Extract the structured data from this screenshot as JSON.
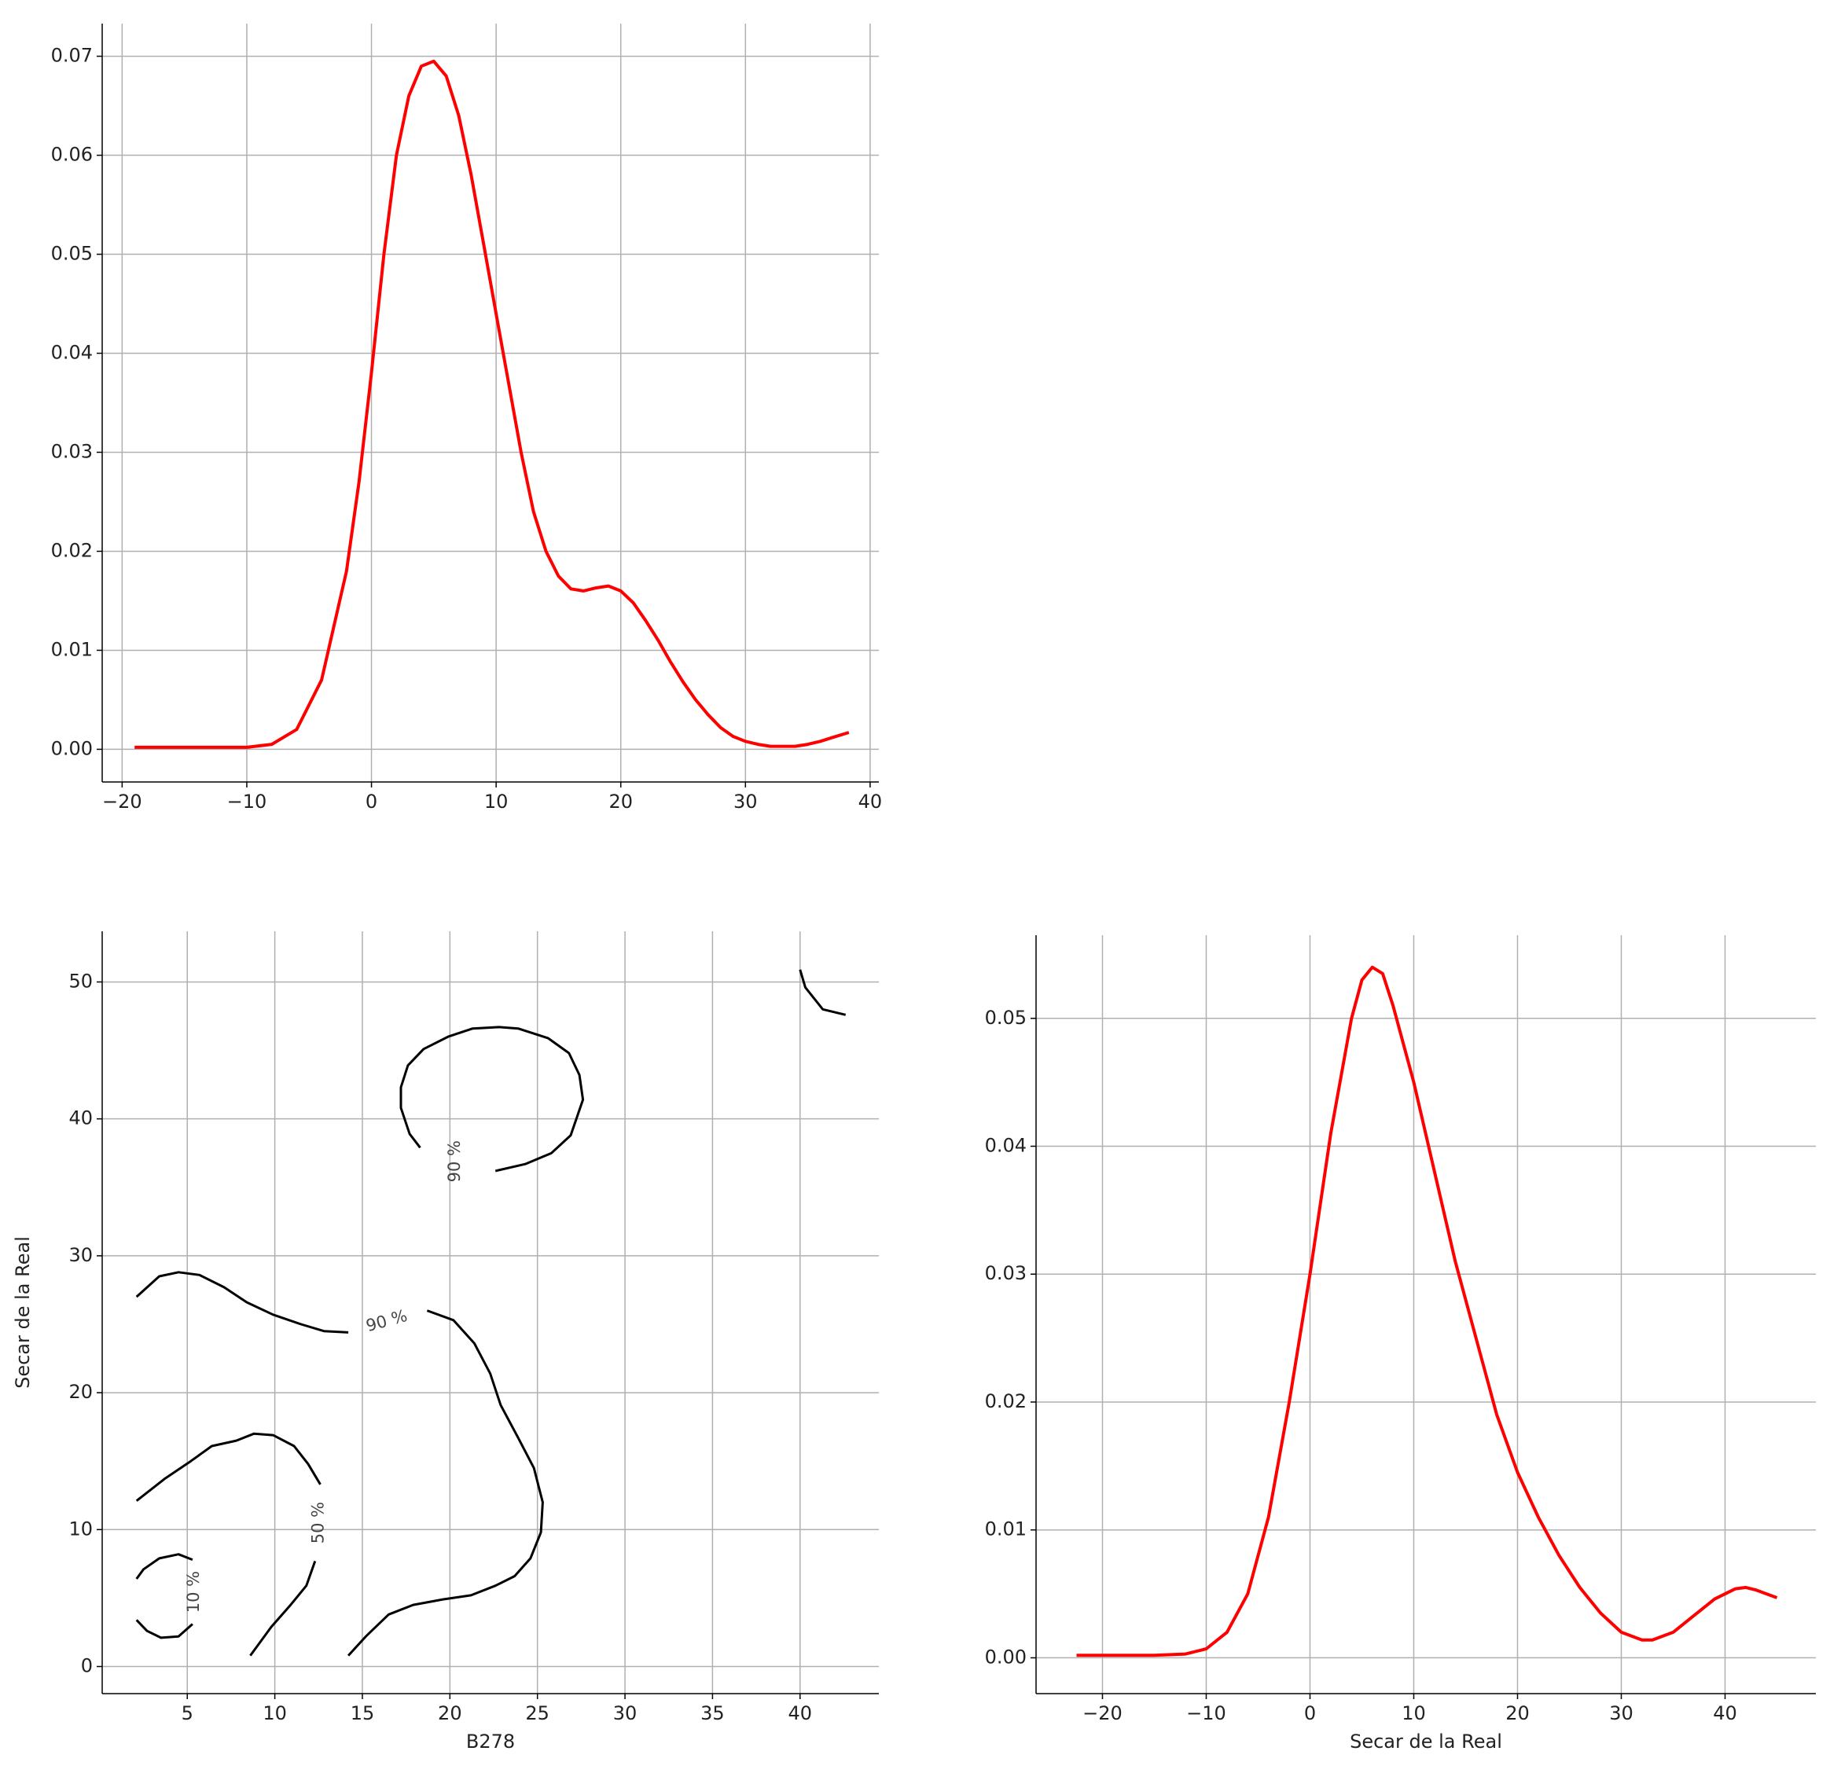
{
  "chart_data": [
    {
      "type": "line",
      "x": [
        -19,
        -15,
        -10,
        -8,
        -6,
        -4,
        -2,
        -1,
        0,
        1,
        2,
        3,
        4,
        5,
        6,
        7,
        8,
        9,
        10,
        11,
        12,
        13,
        14,
        15,
        16,
        17,
        18,
        19,
        20,
        21,
        22,
        23,
        24,
        25,
        26,
        27,
        28,
        29,
        30,
        31,
        32,
        33,
        34,
        35,
        36,
        37,
        38.3
      ],
      "series": [
        {
          "color": "#ff0000",
          "values": [
            0.0002,
            0.0002,
            0.0002,
            0.0005,
            0.002,
            0.007,
            0.018,
            0.027,
            0.038,
            0.05,
            0.06,
            0.066,
            0.069,
            0.0695,
            0.068,
            0.064,
            0.058,
            0.051,
            0.044,
            0.037,
            0.03,
            0.024,
            0.02,
            0.0175,
            0.0162,
            0.016,
            0.0163,
            0.0165,
            0.016,
            0.0148,
            0.013,
            0.011,
            0.0088,
            0.0068,
            0.005,
            0.0035,
            0.0022,
            0.0013,
            0.0008,
            0.0005,
            0.0003,
            0.0003,
            0.0003,
            0.0005,
            0.0008,
            0.0012,
            0.0017
          ]
        }
      ],
      "xlim": [
        -21.6,
        40.7
      ],
      "ylim": [
        -0.0033,
        0.0733
      ],
      "xticks": [
        {
          "value": -20,
          "label": "−20"
        },
        {
          "value": -10,
          "label": "−10"
        },
        0,
        10,
        20,
        30,
        40
      ],
      "yticks": [
        {
          "value": 0,
          "label": "0.00"
        },
        0.01,
        0.02,
        0.03,
        0.04,
        0.05,
        0.06,
        0.07
      ],
      "grid": true
    },
    {
      "type": "contour",
      "xlabel": "B278",
      "ylabel": "Secar de la Real",
      "lines": [
        {
          "color": "#000000",
          "x": [
            40,
            40.3,
            41.3,
            42.6
          ],
          "y": [
            50.9,
            49.6,
            48,
            47.6
          ]
        },
        {
          "color": "#000000",
          "x": [
            22.6,
            24.3,
            25.8,
            26.9,
            27.6,
            27.4,
            26.8,
            25.6,
            23.9,
            22.8,
            21.3,
            19.9,
            18.5,
            17.6,
            17.2,
            17.2,
            17.7,
            18.3
          ],
          "y": [
            36.2,
            36.7,
            37.5,
            38.8,
            41.4,
            43.2,
            44.8,
            45.9,
            46.6,
            46.7,
            46.6,
            46,
            45.1,
            43.9,
            42.3,
            40.8,
            38.9,
            37.9
          ]
        },
        {
          "color": "#000000",
          "x": [
            2.1,
            3.4,
            4.5,
            5.7,
            7.1,
            8.4,
            9.9,
            11.5,
            12.8,
            14.2
          ],
          "y": [
            27,
            28.5,
            28.8,
            28.6,
            27.7,
            26.6,
            25.7,
            25,
            24.5,
            24.4
          ]
        },
        {
          "color": "#000000",
          "x": [
            18.7,
            20.2,
            21.4,
            22.3,
            22.9,
            23.9,
            24.8,
            25.3,
            25.2,
            24.6,
            23.7,
            22.6,
            21.2,
            19.6,
            17.9,
            16.5,
            15.2,
            14.2
          ],
          "y": [
            26,
            25.3,
            23.6,
            21.4,
            19.1,
            16.7,
            14.5,
            12,
            9.8,
            7.9,
            6.6,
            5.9,
            5.2,
            4.9,
            4.5,
            3.8,
            2.2,
            0.8
          ]
        },
        {
          "color": "#000000",
          "x": [
            2.1,
            3.7,
            5.2,
            6.4,
            7.8,
            8.8,
            9.9,
            11.1,
            11.9,
            12.6
          ],
          "y": [
            12.1,
            13.7,
            15,
            16.1,
            16.5,
            17,
            16.9,
            16.1,
            14.8,
            13.3
          ]
        },
        {
          "color": "#000000",
          "x": [
            12.3,
            11.8,
            10.9,
            9.8,
            8.6
          ],
          "y": [
            7.7,
            5.9,
            4.5,
            2.9,
            0.8
          ]
        },
        {
          "color": "#000000",
          "x": [
            2.1,
            2.5,
            3.4,
            4.5,
            5.3
          ],
          "y": [
            6.4,
            7.1,
            7.9,
            8.2,
            7.8
          ]
        },
        {
          "color": "#000000",
          "x": [
            2.1,
            2.7,
            3.5,
            4.5,
            5.3
          ],
          "y": [
            3.4,
            2.6,
            2.1,
            2.2,
            3.1
          ]
        }
      ],
      "labels": [
        {
          "text": "90 %",
          "x": 20.3,
          "y": 36.9
        },
        {
          "text": "90 %",
          "x": 16.4,
          "y": 25.2
        },
        {
          "text": "50 %",
          "x": 12.5,
          "y": 10.5
        },
        {
          "text": "10 %",
          "x": 5.4,
          "y": 5.45
        }
      ],
      "xlim": [
        0.14,
        44.5
      ],
      "ylim": [
        -1.98,
        53.7
      ],
      "xticks": [
        5,
        10,
        15,
        20,
        25,
        30,
        35,
        40
      ],
      "yticks": [
        0,
        10,
        20,
        30,
        40,
        50
      ],
      "grid": true
    },
    {
      "type": "line",
      "xlabel": "Secar de la Real",
      "x": [
        -22.5,
        -15,
        -12,
        -10,
        -8,
        -6,
        -4,
        -2,
        0,
        2,
        4,
        5,
        6,
        7,
        8,
        10,
        12,
        14,
        16,
        18,
        20,
        22,
        24,
        26,
        28,
        30,
        32,
        33,
        35,
        37,
        39,
        41,
        42,
        43,
        45
      ],
      "series": [
        {
          "color": "#ff0000",
          "values": [
            0.0002,
            0.0002,
            0.0003,
            0.0007,
            0.002,
            0.005,
            0.011,
            0.02,
            0.03,
            0.041,
            0.05,
            0.053,
            0.054,
            0.0535,
            0.051,
            0.045,
            0.038,
            0.031,
            0.025,
            0.019,
            0.0145,
            0.011,
            0.008,
            0.0055,
            0.0035,
            0.002,
            0.0014,
            0.0014,
            0.002,
            0.0033,
            0.0046,
            0.0054,
            0.0055,
            0.0053,
            0.0047
          ]
        }
      ],
      "xlim": [
        -26.4,
        48.75
      ],
      "ylim": [
        -0.0028,
        0.0565
      ],
      "xticks": [
        {
          "value": -20,
          "label": "−20"
        },
        {
          "value": -10,
          "label": "−10"
        },
        0,
        10,
        20,
        30,
        40
      ],
      "yticks": [
        {
          "value": 0,
          "label": "0.00"
        },
        0.01,
        0.02,
        0.03,
        0.04,
        0.05
      ],
      "grid": true
    }
  ]
}
